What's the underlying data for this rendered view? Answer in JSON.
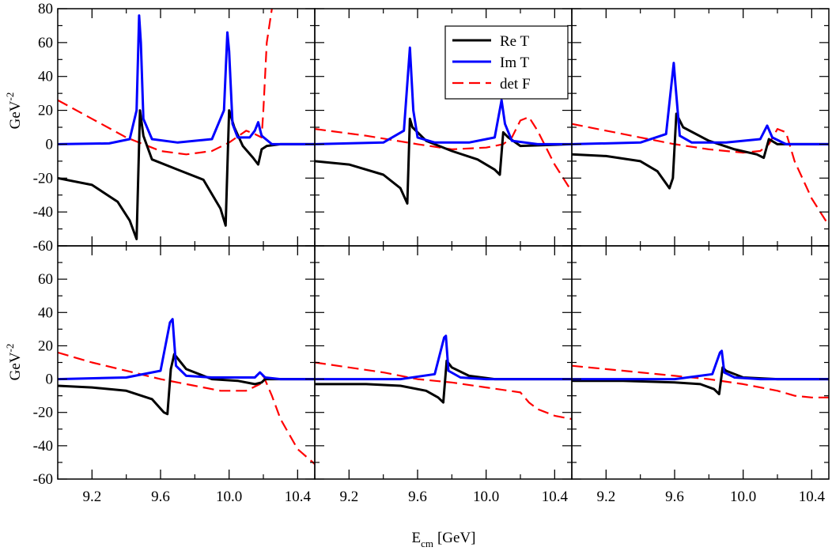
{
  "figure": {
    "xlabel_main": "E",
    "xlabel_sub": "cm",
    "xlabel_unit": "[GeV]",
    "ylabel_main": "GeV",
    "ylabel_sup": "-2"
  },
  "legend": {
    "placement": "top-right of top-middle panel",
    "entries": [
      {
        "label": "Re T",
        "color": "#000000",
        "dash": "solid"
      },
      {
        "label": "Im T",
        "color": "#0000ff",
        "dash": "solid"
      },
      {
        "label": "det F",
        "color": "#ff0000",
        "dash": "dashed"
      }
    ]
  },
  "axes": {
    "xlim": [
      9.0,
      10.5
    ],
    "xticks": [
      "9.2",
      "9.6",
      "10.0",
      "10.4"
    ],
    "xtick_values": [
      9.2,
      9.6,
      10.0,
      10.4
    ],
    "top_ylim": [
      -60,
      80
    ],
    "top_yticks": [
      "-60",
      "-40",
      "-20",
      "0",
      "20",
      "40",
      "60",
      "80"
    ],
    "bottom_ylim": [
      -60,
      80
    ],
    "bottom_yticks": [
      "-60",
      "-40",
      "-20",
      "0",
      "20",
      "40",
      "60"
    ]
  },
  "chart_data": [
    {
      "type": "line",
      "panel": "top-left",
      "xlim": [
        9.0,
        10.5
      ],
      "ylim": [
        -60,
        80
      ],
      "series": [
        {
          "name": "Re T",
          "x": [
            9.0,
            9.2,
            9.35,
            9.42,
            9.46,
            9.48,
            9.5,
            9.55,
            9.7,
            9.85,
            9.95,
            9.98,
            10.0,
            10.03,
            10.08,
            10.14,
            10.17,
            10.19,
            10.22,
            10.3,
            10.5
          ],
          "y": [
            -20,
            -24,
            -34,
            -45,
            -56,
            20,
            5,
            -9,
            -15,
            -21,
            -38,
            -48,
            20,
            10,
            -1,
            -8,
            -12,
            -3,
            -1,
            0,
            0
          ]
        },
        {
          "name": "Im T",
          "x": [
            9.0,
            9.3,
            9.42,
            9.46,
            9.475,
            9.485,
            9.5,
            9.55,
            9.7,
            9.9,
            9.97,
            9.99,
            10.0,
            10.02,
            10.05,
            10.12,
            10.15,
            10.17,
            10.19,
            10.25,
            10.5
          ],
          "y": [
            0,
            0.5,
            3,
            20,
            76,
            60,
            15,
            3,
            1,
            3,
            20,
            66,
            55,
            12,
            4,
            4,
            8,
            13,
            5,
            0,
            0
          ]
        },
        {
          "name": "det F",
          "x": [
            9.0,
            9.2,
            9.4,
            9.6,
            9.75,
            9.9,
            10.0,
            10.1,
            10.15,
            10.19,
            10.2,
            10.22,
            10.25
          ],
          "y": [
            26,
            15,
            4,
            -4,
            -6,
            -4,
            1,
            8,
            6,
            4,
            20,
            60,
            80
          ]
        }
      ]
    },
    {
      "type": "line",
      "panel": "top-middle",
      "xlim": [
        9.0,
        10.5
      ],
      "ylim": [
        -60,
        80
      ],
      "series": [
        {
          "name": "Re T",
          "x": [
            9.0,
            9.2,
            9.4,
            9.5,
            9.54,
            9.555,
            9.57,
            9.65,
            9.8,
            9.95,
            10.05,
            10.08,
            10.1,
            10.13,
            10.2,
            10.5
          ],
          "y": [
            -10,
            -12,
            -18,
            -26,
            -35,
            15,
            10,
            2,
            -4,
            -9,
            -15,
            -18,
            7,
            4,
            -1,
            0
          ]
        },
        {
          "name": "Im T",
          "x": [
            9.0,
            9.4,
            9.52,
            9.555,
            9.575,
            9.6,
            9.7,
            9.9,
            10.05,
            10.09,
            10.11,
            10.15,
            10.3,
            10.5
          ],
          "y": [
            0,
            1,
            8,
            57,
            20,
            4,
            1,
            1,
            4,
            26,
            12,
            2,
            0,
            0
          ]
        },
        {
          "name": "det F",
          "x": [
            9.0,
            9.3,
            9.6,
            9.8,
            10.0,
            10.1,
            10.15,
            10.2,
            10.25,
            10.3,
            10.4,
            10.5
          ],
          "y": [
            9,
            5,
            0,
            -3,
            -2,
            0,
            4,
            14,
            16,
            8,
            -12,
            -28
          ]
        }
      ]
    },
    {
      "type": "line",
      "panel": "top-right",
      "xlim": [
        9.0,
        10.5
      ],
      "ylim": [
        -60,
        80
      ],
      "series": [
        {
          "name": "Re T",
          "x": [
            9.0,
            9.2,
            9.4,
            9.5,
            9.57,
            9.59,
            9.61,
            9.65,
            9.8,
            9.95,
            10.08,
            10.12,
            10.15,
            10.2,
            10.5
          ],
          "y": [
            -6,
            -7,
            -10,
            -16,
            -26,
            -20,
            18,
            10,
            2,
            -3,
            -6,
            -8,
            3,
            0,
            0
          ]
        },
        {
          "name": "Im T",
          "x": [
            9.0,
            9.4,
            9.55,
            9.595,
            9.605,
            9.63,
            9.7,
            9.9,
            10.1,
            10.14,
            10.17,
            10.25,
            10.5
          ],
          "y": [
            0,
            1,
            6,
            48,
            35,
            5,
            1,
            1,
            3,
            11,
            4,
            0,
            0
          ]
        },
        {
          "name": "det F",
          "x": [
            9.0,
            9.2,
            9.4,
            9.6,
            9.8,
            10.0,
            10.1,
            10.15,
            10.2,
            10.25,
            10.3,
            10.4,
            10.5
          ],
          "y": [
            12,
            8,
            4,
            0,
            -3,
            -5,
            -4,
            0,
            9,
            7,
            -10,
            -32,
            -48
          ]
        }
      ]
    },
    {
      "type": "line",
      "panel": "bottom-left",
      "xlim": [
        9.0,
        10.5
      ],
      "ylim": [
        -60,
        80
      ],
      "series": [
        {
          "name": "Re T",
          "x": [
            9.0,
            9.2,
            9.4,
            9.55,
            9.62,
            9.64,
            9.66,
            9.68,
            9.75,
            9.9,
            10.05,
            10.15,
            10.19,
            10.21,
            10.3,
            10.5
          ],
          "y": [
            -4,
            -5,
            -7,
            -12,
            -20,
            -21,
            6,
            15,
            6,
            0,
            -1,
            -3,
            -2,
            0,
            0,
            0
          ]
        },
        {
          "name": "Im T",
          "x": [
            9.0,
            9.4,
            9.6,
            9.655,
            9.67,
            9.69,
            9.75,
            9.9,
            10.15,
            10.18,
            10.21,
            10.3,
            10.5
          ],
          "y": [
            0,
            1,
            5,
            34,
            36,
            8,
            2,
            1,
            1,
            4,
            1,
            0,
            0
          ]
        },
        {
          "name": "det F",
          "x": [
            9.0,
            9.2,
            9.4,
            9.6,
            9.8,
            9.95,
            10.1,
            10.18,
            10.2,
            10.25,
            10.3,
            10.4,
            10.5
          ],
          "y": [
            16,
            10,
            5,
            0,
            -4,
            -7,
            -7,
            -3,
            2,
            -10,
            -24,
            -42,
            -51
          ]
        }
      ]
    },
    {
      "type": "line",
      "panel": "bottom-middle",
      "xlim": [
        9.0,
        10.5
      ],
      "ylim": [
        -60,
        80
      ],
      "series": [
        {
          "name": "Re T",
          "x": [
            9.0,
            9.3,
            9.5,
            9.65,
            9.72,
            9.75,
            9.77,
            9.8,
            9.9,
            10.05,
            10.2,
            10.5
          ],
          "y": [
            -3,
            -3,
            -4,
            -7,
            -11,
            -14,
            11,
            7,
            2,
            0,
            0,
            0
          ]
        },
        {
          "name": "Im T",
          "x": [
            9.0,
            9.5,
            9.7,
            9.755,
            9.765,
            9.78,
            9.85,
            10.0,
            10.5
          ],
          "y": [
            0,
            0,
            3,
            25,
            26,
            5,
            1,
            0,
            0
          ]
        },
        {
          "name": "det F",
          "x": [
            9.0,
            9.2,
            9.4,
            9.6,
            9.8,
            10.0,
            10.2,
            10.25,
            10.3,
            10.4,
            10.5
          ],
          "y": [
            10,
            7,
            4,
            0,
            -2,
            -5,
            -8,
            -14,
            -18,
            -22,
            -24
          ]
        }
      ]
    },
    {
      "type": "line",
      "panel": "bottom-right",
      "xlim": [
        9.0,
        10.5
      ],
      "ylim": [
        -60,
        80
      ],
      "series": [
        {
          "name": "Re T",
          "x": [
            9.0,
            9.3,
            9.6,
            9.75,
            9.83,
            9.86,
            9.88,
            9.9,
            10.0,
            10.2,
            10.5
          ],
          "y": [
            -1,
            -1,
            -2,
            -3,
            -6,
            -9,
            7,
            5,
            1,
            0,
            0
          ]
        },
        {
          "name": "Im T",
          "x": [
            9.0,
            9.6,
            9.82,
            9.865,
            9.875,
            9.89,
            9.95,
            10.1,
            10.5
          ],
          "y": [
            0,
            0,
            3,
            16,
            17,
            4,
            1,
            0,
            0
          ]
        },
        {
          "name": "det F",
          "x": [
            9.0,
            9.2,
            9.4,
            9.6,
            9.8,
            10.0,
            10.1,
            10.2,
            10.3,
            10.4,
            10.5
          ],
          "y": [
            8,
            6,
            4,
            2,
            0,
            -3,
            -5,
            -7,
            -10,
            -11,
            -11
          ]
        }
      ]
    }
  ]
}
